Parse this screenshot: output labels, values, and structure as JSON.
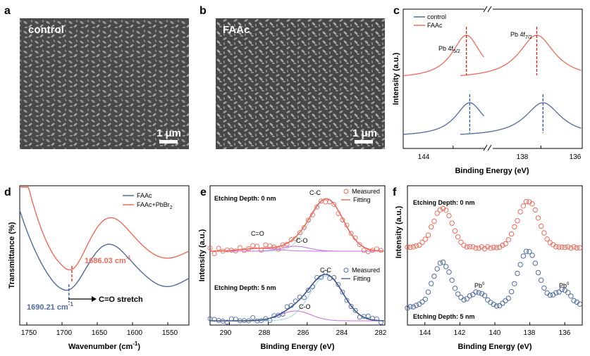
{
  "colors": {
    "control": "#4f6aa3",
    "faac": "#f06a5a",
    "fitting_blue": "#4f6aa3"
  },
  "panels": {
    "a": {
      "letter": "a",
      "image_label": "control",
      "scale_bar": "1 μm"
    },
    "b": {
      "letter": "b",
      "image_label": "FAAc",
      "scale_bar": "1 μm"
    }
  },
  "chart_data": [
    {
      "id": "c",
      "letter": "c",
      "type": "line",
      "xlabel": "Binding Energy (eV)",
      "ylabel": "Intensity (a.u.)",
      "xlim": [
        147,
        136
      ],
      "x_ticks": [
        144,
        138,
        136
      ],
      "axis_break": "after 142",
      "legend": [
        "control",
        "FAAc"
      ],
      "legend_placement": "top-left",
      "annotations": [
        {
          "text": "Pb 4f",
          "sub": "5/2",
          "x": 143.2
        },
        {
          "text": "Pb 4f",
          "sub": "7/2",
          "x": 138.2
        }
      ],
      "series": [
        {
          "name": "control",
          "peaks": [
            143.0,
            137.9
          ],
          "offset": 0
        },
        {
          "name": "FAAc",
          "peaks": [
            143.2,
            138.2
          ],
          "offset": 1
        }
      ]
    },
    {
      "id": "d",
      "letter": "d",
      "type": "line",
      "xlabel": "Wavenumber (cm",
      "xlabel_sup": "-1",
      "xlabel_tail": ")",
      "ylabel": "Transmittance (%)",
      "xlim": [
        1760,
        1520
      ],
      "x_ticks": [
        1750,
        1700,
        1650,
        1600,
        1550
      ],
      "legend": [
        "FAAc",
        "FAAc+PbBr",
        "2"
      ],
      "legend_placement": "top-right",
      "annotations": [
        {
          "text": "1686.03 cm",
          "sup": "-1",
          "x": 1686.03,
          "series": "FAAc+PbBr2"
        },
        {
          "text": "1690.21 cm",
          "sup": "-1",
          "x": 1690.21,
          "series": "FAAc"
        },
        {
          "text": "C=O stretch"
        }
      ]
    },
    {
      "id": "e",
      "letter": "e",
      "type": "scatter",
      "xlabel": "Binding Energy (eV)",
      "ylabel": "Intensity (a.u.)",
      "xlim": [
        291,
        282
      ],
      "x_ticks": [
        290,
        288,
        286,
        284,
        282
      ],
      "legend": [
        "Measured",
        "Fitting"
      ],
      "legend_placement": "top-right",
      "subpanels": [
        {
          "title": "Etching Depth: 0 nm",
          "peaks": [
            {
              "label": "C-C",
              "x": 285.0
            },
            {
              "label": "C-O",
              "x": 286.6
            },
            {
              "label": "C=O",
              "x": 288.4
            }
          ]
        },
        {
          "title": "Etching Depth: 5 nm",
          "peaks": [
            {
              "label": "C-C",
              "x": 285.0
            },
            {
              "label": "C-O",
              "x": 286.5
            }
          ]
        }
      ]
    },
    {
      "id": "f",
      "letter": "f",
      "type": "scatter",
      "xlabel": "Binding Energy (eV)",
      "ylabel": "Intensity (a.u.)",
      "xlim": [
        145,
        135
      ],
      "x_ticks": [
        144,
        142,
        140,
        138,
        136
      ],
      "subpanels": [
        {
          "title": "Etching Depth: 0 nm",
          "peaks": [
            143.0,
            138.1
          ]
        },
        {
          "title": "Etching Depth: 5 nm",
          "peaks": [
            143.0,
            138.1
          ],
          "pb0": [
            {
              "label": "Pb",
              "sup": "0",
              "x": 141.0
            },
            {
              "label": "Pb",
              "sup": "0",
              "x": 136.1
            }
          ]
        }
      ]
    }
  ]
}
